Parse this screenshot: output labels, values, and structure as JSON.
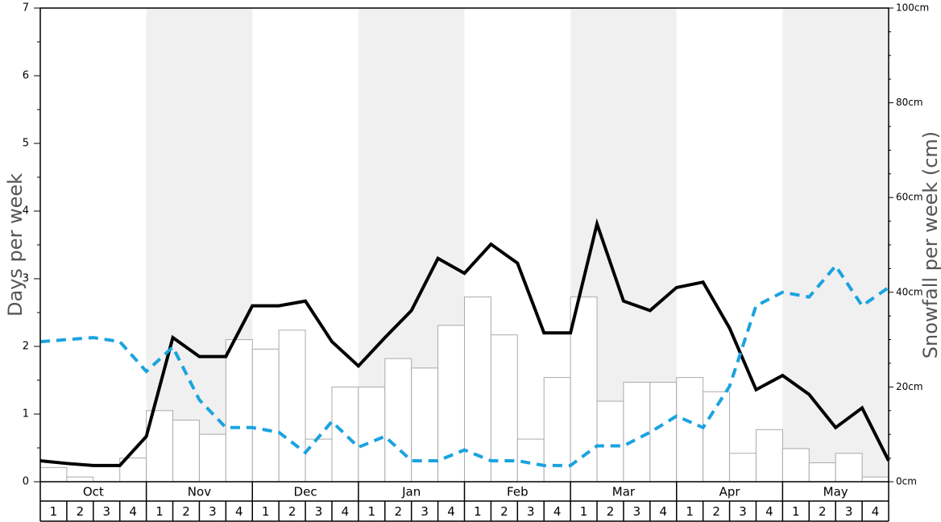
{
  "chart_data": {
    "type": "bar",
    "left_axis": {
      "title": "Days per week",
      "range": [
        0,
        7
      ],
      "ticks": [
        "0",
        "1",
        "2",
        "3",
        "4",
        "5",
        "6",
        "7"
      ]
    },
    "right_axis": {
      "title": "Snowfall per week (cm)",
      "range": [
        0,
        100
      ],
      "ticks": [
        "0cm",
        "20cm",
        "40cm",
        "60cm",
        "80cm",
        "100cm"
      ]
    },
    "months": [
      "Oct",
      "Nov",
      "Dec",
      "Jan",
      "Feb",
      "Mar",
      "Apr",
      "May"
    ],
    "weeks": [
      "1",
      "2",
      "3",
      "4"
    ],
    "shaded_months": [
      "Nov",
      "Jan",
      "Mar",
      "May"
    ],
    "series": [
      {
        "kind": "bar",
        "axis": "right",
        "color": "#ffffff",
        "values": [
          3,
          1,
          0,
          5,
          15,
          13,
          10,
          30,
          28,
          32,
          9,
          20,
          20,
          26,
          24,
          33,
          39,
          31,
          9,
          22,
          39,
          17,
          21,
          21,
          22,
          19,
          6,
          11,
          7,
          4,
          6,
          1
        ]
      },
      {
        "kind": "line",
        "axis": "left",
        "color": "#000000",
        "style": "solid",
        "values": [
          0.31,
          0.27,
          0.24,
          0.24,
          0.67,
          2.13,
          1.85,
          1.85,
          2.6,
          2.6,
          2.67,
          2.07,
          1.71,
          2.13,
          2.53,
          3.3,
          3.08,
          3.51,
          3.23,
          2.2,
          2.2,
          3.81,
          2.67,
          2.53,
          2.87,
          2.95,
          2.27,
          1.36,
          1.57,
          1.29,
          0.8,
          1.09,
          0.31
        ]
      },
      {
        "kind": "line",
        "axis": "left",
        "color": "#1aa3e0",
        "style": "dashed",
        "values": [
          2.07,
          2.1,
          2.13,
          2.07,
          1.63,
          1.99,
          1.21,
          0.8,
          0.8,
          0.73,
          0.43,
          0.89,
          0.51,
          0.67,
          0.31,
          0.31,
          0.47,
          0.31,
          0.31,
          0.24,
          0.24,
          0.53,
          0.53,
          0.73,
          0.97,
          0.8,
          1.41,
          2.6,
          2.8,
          2.73,
          3.19,
          2.6,
          2.87
        ]
      }
    ]
  }
}
